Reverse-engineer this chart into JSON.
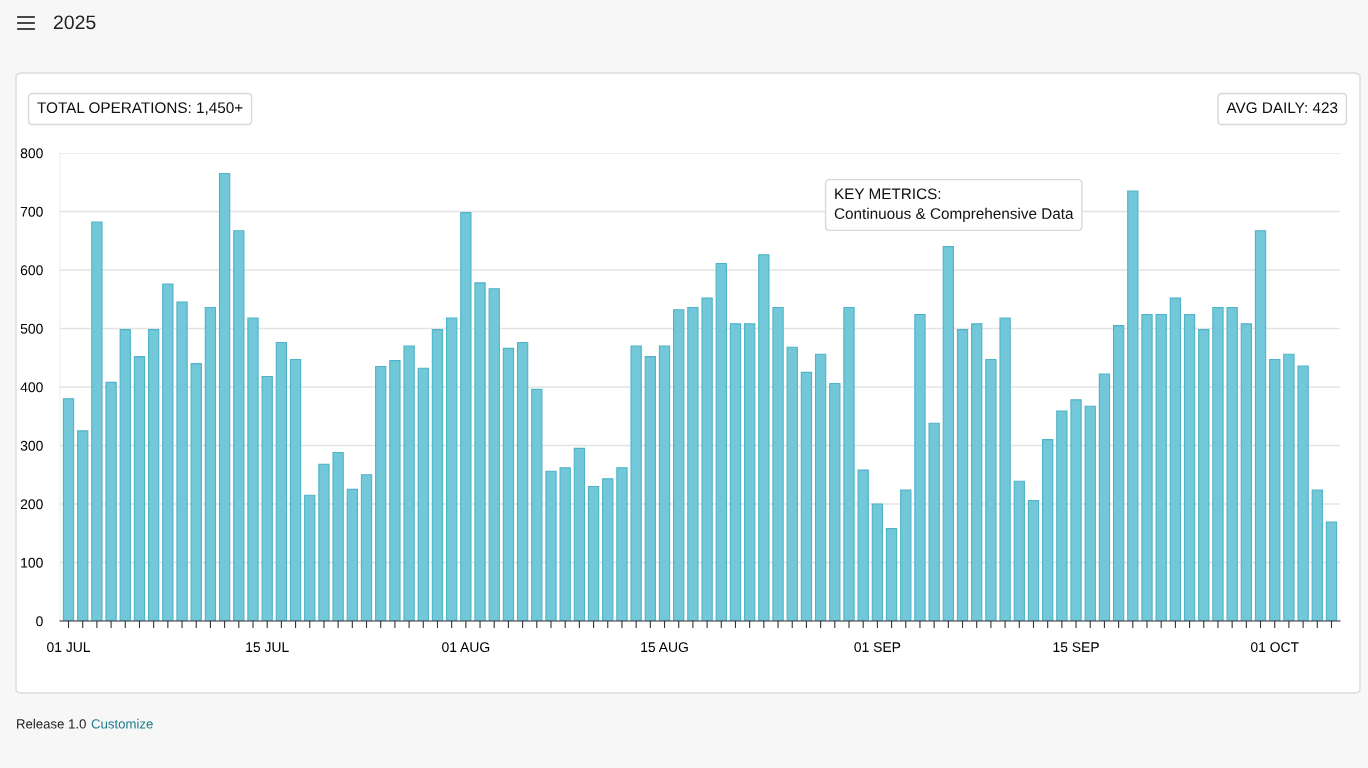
{
  "chart_data": {
    "type": "bar",
    "title": "2025",
    "annotations": [
      "TOTAL OPERATIONS: 1,450+",
      "AVG DAILY: 423",
      "KEY METRICS:\nContinuous & Comprehensive Data",
      "Release 1.0",
      "Customize"
    ],
    "categories": [
      "01 JUL",
      null,
      null,
      null,
      null,
      null,
      null,
      null,
      null,
      null,
      null,
      null,
      null,
      null,
      "15 JUL",
      null,
      null,
      null,
      null,
      null,
      null,
      null,
      null,
      null,
      null,
      null,
      null,
      null,
      "01 AUG",
      null,
      null,
      null,
      null,
      null,
      null,
      null,
      null,
      null,
      null,
      null,
      null,
      null,
      "15 AUG",
      null,
      null,
      null,
      null,
      null,
      null,
      null,
      null,
      null,
      null,
      null,
      null,
      null,
      null,
      "01 SEP",
      null,
      null,
      null,
      null,
      null,
      null,
      null,
      null,
      null,
      null,
      null,
      null,
      null,
      "15 SEP",
      null,
      null,
      null,
      null,
      null,
      null,
      null,
      null,
      null,
      null,
      null,
      null,
      null,
      "01 OCT",
      null,
      null,
      null,
      null
    ],
    "values": [
      380,
      325,
      682,
      408,
      498,
      452,
      498,
      576,
      545,
      440,
      536,
      765,
      667,
      518,
      418,
      476,
      447,
      215,
      268,
      288,
      225,
      250,
      435,
      445,
      470,
      432,
      498,
      518,
      698,
      578,
      568,
      466,
      476,
      396,
      256,
      262,
      295,
      230,
      243,
      262,
      470,
      452,
      470,
      532,
      536,
      552,
      611,
      508,
      508,
      626,
      536,
      468,
      425,
      456,
      406,
      536,
      258,
      200,
      158,
      224,
      524,
      338,
      640,
      498,
      508,
      447,
      518,
      239,
      206,
      310,
      359,
      378,
      367,
      422,
      505,
      735,
      524,
      524,
      552,
      524,
      498,
      536,
      536,
      508,
      667,
      447,
      456,
      436,
      224,
      169
    ],
    "color": "#72c8d8",
    "ylim": [
      0,
      800
    ],
    "yticks": [
      0,
      100,
      200,
      300,
      400,
      500,
      600,
      700,
      800
    ],
    "grid": "y"
  }
}
